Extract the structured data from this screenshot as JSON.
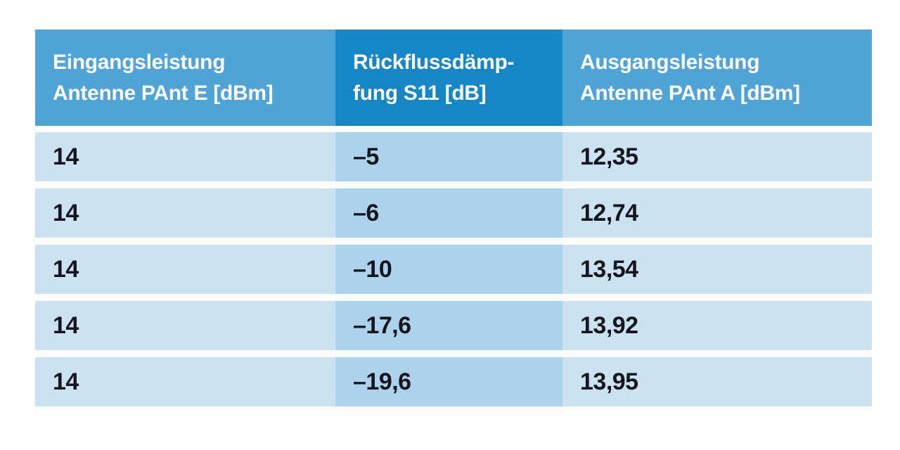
{
  "table": {
    "colors": {
      "header_side": "#4fa3d7",
      "header_mid": "#1786c4",
      "header_text": "#ffffff",
      "body_side": "#cbe2f3",
      "body_mid": "#add2eb",
      "body_text": "#16161e"
    },
    "columns": [
      {
        "id": "eingangsleistung",
        "header_lines": [
          "Eingangsleistung",
          "Antenne PAnt E [dBm]"
        ],
        "highlight": false
      },
      {
        "id": "rueckflussdaempfung",
        "header_lines": [
          "Rückflussdämp-",
          "fung S11 [dB]"
        ],
        "highlight": true
      },
      {
        "id": "ausgangsleistung",
        "header_lines": [
          "Ausgangsleistung",
          "Antenne PAnt A [dBm]"
        ],
        "highlight": false
      }
    ],
    "rows": [
      [
        "14",
        "–5",
        "12,35"
      ],
      [
        "14",
        "–6",
        "12,74"
      ],
      [
        "14",
        "–10",
        "13,54"
      ],
      [
        "14",
        "–17,6",
        "13,92"
      ],
      [
        "14",
        "–19,6",
        "13,95"
      ]
    ]
  },
  "chart_data": {
    "type": "table",
    "columns": [
      "Eingangsleistung Antenne PAnt E [dBm]",
      "Rückflussdämpfung S11 [dB]",
      "Ausgangsleistung Antenne PAnt A [dBm]"
    ],
    "rows": [
      [
        14,
        -5,
        12.35
      ],
      [
        14,
        -6,
        12.74
      ],
      [
        14,
        -10,
        13.54
      ],
      [
        14,
        -17.6,
        13.92
      ],
      [
        14,
        -19.6,
        13.95
      ]
    ],
    "highlighted_column_index": 1
  }
}
